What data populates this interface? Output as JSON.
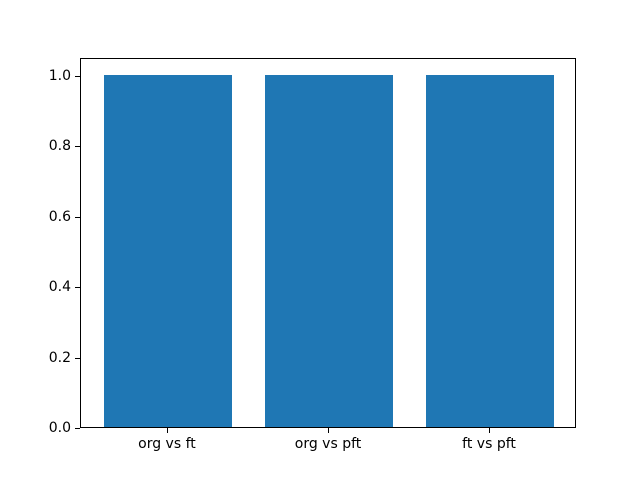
{
  "chart_data": {
    "type": "bar",
    "categories": [
      "org vs ft",
      "org vs pft",
      "ft vs pft"
    ],
    "values": [
      1.0,
      1.0,
      1.0
    ],
    "title": "",
    "xlabel": "",
    "ylabel": "",
    "xlim": [
      -0.54,
      2.54
    ],
    "ylim": [
      0,
      1.05
    ],
    "bar_width": 0.8,
    "yticks": [
      0.0,
      0.2,
      0.4,
      0.6,
      0.8,
      1.0
    ],
    "ytick_labels": [
      "0.0",
      "0.2",
      "0.4",
      "0.6",
      "0.8",
      "1.0"
    ],
    "grid": false,
    "legend": null,
    "bar_color": "#1f77b4",
    "spine_color": "#000000",
    "text_color": "#000000",
    "background_color": "#ffffff"
  }
}
